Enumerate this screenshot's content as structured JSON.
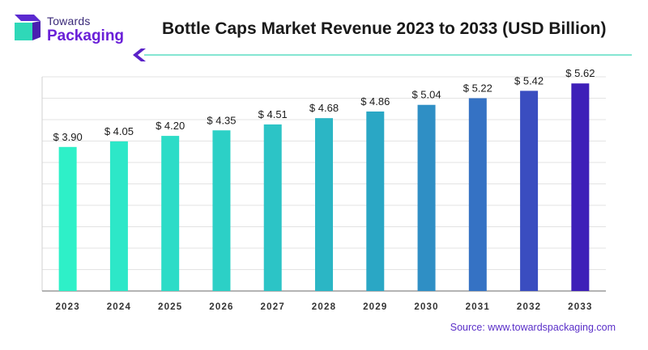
{
  "logo": {
    "line1": "Towards",
    "line2": "Packaging"
  },
  "chart_data": {
    "type": "bar",
    "title": "Bottle Caps Market Revenue 2023 to 2033 (USD Billion)",
    "categories": [
      "2023",
      "2024",
      "2025",
      "2026",
      "2027",
      "2028",
      "2029",
      "2030",
      "2031",
      "2032",
      "2033"
    ],
    "values": [
      3.9,
      4.05,
      4.2,
      4.35,
      4.51,
      4.68,
      4.86,
      5.04,
      5.22,
      5.42,
      5.62
    ],
    "value_labels": [
      "$ 3.90",
      "$ 4.05",
      "$ 4.20",
      "$ 4.35",
      "$ 4.51",
      "$ 4.68",
      "$ 4.86",
      "$ 5.04",
      "$ 5.22",
      "$ 5.42",
      "$ 5.62"
    ],
    "ylim": [
      0,
      5.8
    ],
    "grid": true,
    "bar_colors": [
      "#2ef0c8",
      "#2de7c8",
      "#2cdcc7",
      "#2cd0c6",
      "#2cc4c6",
      "#2bb6c5",
      "#2aa7c5",
      "#2f8fc5",
      "#3572c4",
      "#3a4dc0",
      "#3e1fb8"
    ]
  },
  "source": "Source: www.towardspackaging.com",
  "colors": {
    "accent_line": "#3ad6b8",
    "chevron": "#5a22c8",
    "grid": "#e3e3e3"
  }
}
